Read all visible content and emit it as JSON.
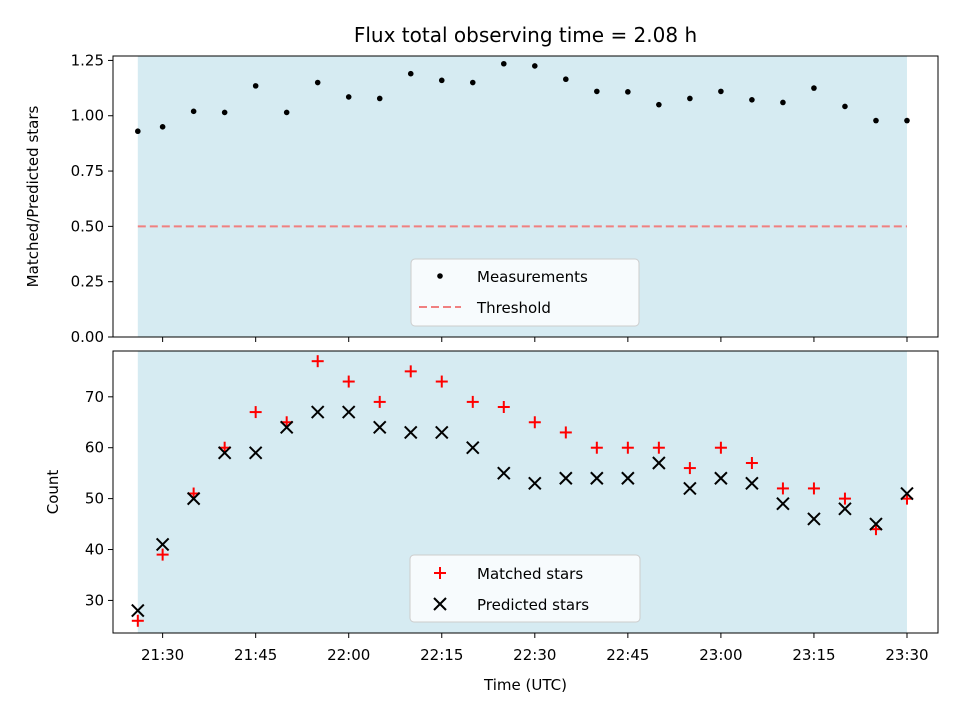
{
  "chart_data": [
    {
      "type": "scatter",
      "title": "Flux total observing time = 2.08 h",
      "ylabel": "Matched/Predicted stars",
      "xlabel": "",
      "xlim": [
        "21:22",
        "23:35"
      ],
      "ylim": [
        0,
        1.27
      ],
      "yticks": [
        "0.00",
        "0.25",
        "0.50",
        "0.75",
        "1.00",
        "1.25"
      ],
      "grid": false,
      "shaded_span": {
        "from": "21:26",
        "to": "23:30",
        "color": "#add8e6"
      },
      "x": [
        "21:26",
        "21:30",
        "21:35",
        "21:40",
        "21:45",
        "21:50",
        "21:55",
        "22:00",
        "22:05",
        "22:10",
        "22:15",
        "22:20",
        "22:25",
        "22:30",
        "22:35",
        "22:40",
        "22:45",
        "22:50",
        "22:55",
        "23:00",
        "23:05",
        "23:10",
        "23:15",
        "23:20",
        "23:25",
        "23:30"
      ],
      "series": [
        {
          "name": "Measurements",
          "values": [
            0.93,
            0.95,
            1.02,
            1.015,
            1.135,
            1.015,
            1.15,
            1.085,
            1.078,
            1.19,
            1.16,
            1.15,
            1.235,
            1.225,
            1.165,
            1.11,
            1.108,
            1.05,
            1.078,
            1.11,
            1.072,
            1.06,
            1.125,
            1.042,
            0.978,
            0.978
          ],
          "color": "#000000",
          "marker": "dot"
        }
      ],
      "threshold": {
        "name": "Threshold",
        "value": 0.5,
        "color": "#f08080",
        "style": "dashed"
      },
      "legend_position": "bottom-center"
    },
    {
      "type": "scatter",
      "title": "",
      "xlabel": "Time (UTC)",
      "ylabel": "Count",
      "xlim": [
        "21:22",
        "23:35"
      ],
      "ylim": [
        23.6,
        79
      ],
      "yticks": [
        "30",
        "40",
        "50",
        "60",
        "70"
      ],
      "xticks": [
        "21:30",
        "21:45",
        "22:00",
        "22:15",
        "22:30",
        "22:45",
        "23:00",
        "23:15",
        "23:30"
      ],
      "grid": false,
      "shaded_span": {
        "from": "21:26",
        "to": "23:30",
        "color": "#add8e6"
      },
      "x": [
        "21:26",
        "21:30",
        "21:35",
        "21:40",
        "21:45",
        "21:50",
        "21:55",
        "22:00",
        "22:05",
        "22:10",
        "22:15",
        "22:20",
        "22:25",
        "22:30",
        "22:35",
        "22:40",
        "22:45",
        "22:50",
        "22:55",
        "23:00",
        "23:05",
        "23:10",
        "23:15",
        "23:20",
        "23:25",
        "23:30"
      ],
      "series": [
        {
          "name": "Matched stars",
          "values": [
            26,
            39,
            51,
            60,
            67,
            65,
            77,
            73,
            69,
            75,
            73,
            69,
            68,
            65,
            63,
            60,
            60,
            60,
            56,
            60,
            57,
            52,
            52,
            50,
            44,
            50
          ],
          "color": "#ff0000",
          "marker": "plus"
        },
        {
          "name": "Predicted stars",
          "values": [
            28,
            41,
            50,
            59,
            59,
            64,
            67,
            67,
            64,
            63,
            63,
            60,
            55,
            53,
            54,
            54,
            54,
            57,
            52,
            54,
            53,
            49,
            46,
            48,
            45,
            51
          ],
          "color": "#000000",
          "marker": "x"
        }
      ],
      "legend_position": "bottom-center"
    }
  ]
}
